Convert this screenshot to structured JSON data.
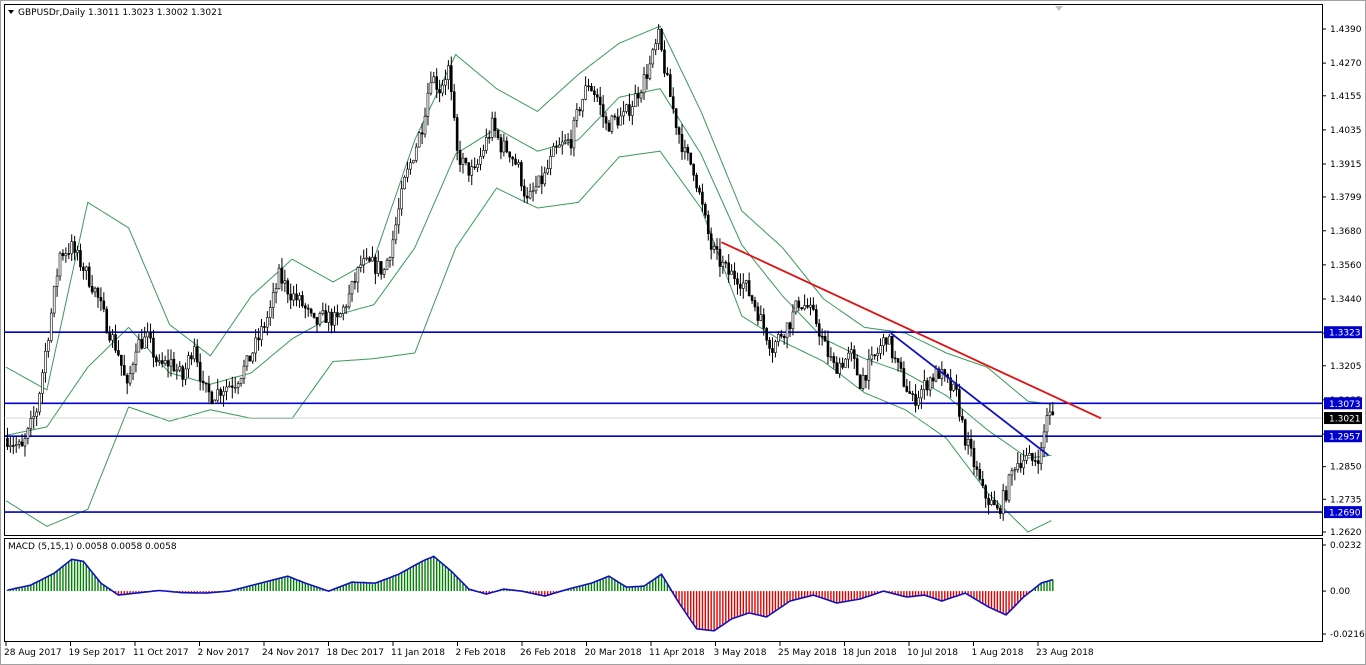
{
  "header": {
    "symbol_text": "GBPUSDr,Daily  1.3011 1.3023 1.3002 1.3021"
  },
  "macd_header": {
    "text": "MACD (5,15,1) 0.0058 0.0058 0.0058"
  },
  "colors": {
    "candle": "#000000",
    "band": "#3a9a5a",
    "hline": "#0000cc",
    "trend_down": "#e01010",
    "trend_blue": "#1010c0",
    "hist_pos": "#008000",
    "hist_neg": "#e00000",
    "macd_line": "#1010c0",
    "price_tag_bg": "#0000cc",
    "current_tag_bg": "#000000"
  },
  "chart_data": [
    {
      "type": "candlestick",
      "title": "GBPUSDr,Daily",
      "y_ticks": [
        "1.4390",
        "1.4270",
        "1.4155",
        "1.4035",
        "1.3915",
        "1.3799",
        "1.3680",
        "1.3560",
        "1.3440",
        "1.3320",
        "1.3205",
        "1.3085",
        "1.2965",
        "1.2850",
        "1.2735",
        "1.2620"
      ],
      "ylim": [
        1.262,
        1.439
      ],
      "x_labels": [
        "28 Aug 2017",
        "19 Sep 2017",
        "11 Oct 2017",
        "2 Nov 2017",
        "24 Nov 2017",
        "18 Dec 2017",
        "11 Jan 2018",
        "2 Feb 2018",
        "26 Feb 2018",
        "20 Mar 2018",
        "11 Apr 2018",
        "3 May 2018",
        "25 May 2018",
        "18 Jun 2018",
        "10 Jul 2018",
        "1 Aug 2018",
        "23 Aug 2018"
      ],
      "horizontal_levels": [
        {
          "value": 1.3323,
          "label": "1.3323"
        },
        {
          "value": 1.3073,
          "label": "1.3073"
        },
        {
          "value": 1.2957,
          "label": "1.2957"
        },
        {
          "value": 1.269,
          "label": "1.2690"
        }
      ],
      "current_price": {
        "value": 1.3021,
        "label": "1.3021"
      },
      "trendlines": [
        {
          "color": "red",
          "from": {
            "bar": 245,
            "price": 1.364
          },
          "to": {
            "bar": 375,
            "price": 1.302
          }
        },
        {
          "color": "blue",
          "from": {
            "bar": 303,
            "price": 1.332
          },
          "to": {
            "bar": 357,
            "price": 1.289
          }
        }
      ],
      "price_anchors": [
        [
          0,
          1.295
        ],
        [
          5,
          1.291
        ],
        [
          10,
          1.305
        ],
        [
          14,
          1.332
        ],
        [
          18,
          1.36
        ],
        [
          22,
          1.362
        ],
        [
          26,
          1.355
        ],
        [
          30,
          1.347
        ],
        [
          34,
          1.335
        ],
        [
          38,
          1.325
        ],
        [
          41,
          1.312
        ],
        [
          44,
          1.328
        ],
        [
          48,
          1.33
        ],
        [
          52,
          1.32
        ],
        [
          56,
          1.322
        ],
        [
          60,
          1.316
        ],
        [
          64,
          1.329
        ],
        [
          67,
          1.312
        ],
        [
          70,
          1.31
        ],
        [
          74,
          1.313
        ],
        [
          78,
          1.315
        ],
        [
          82,
          1.321
        ],
        [
          86,
          1.33
        ],
        [
          90,
          1.34
        ],
        [
          93,
          1.352
        ],
        [
          97,
          1.346
        ],
        [
          101,
          1.342
        ],
        [
          105,
          1.335
        ],
        [
          109,
          1.338
        ],
        [
          113,
          1.336
        ],
        [
          117,
          1.345
        ],
        [
          121,
          1.356
        ],
        [
          125,
          1.356
        ],
        [
          129,
          1.354
        ],
        [
          132,
          1.365
        ],
        [
          136,
          1.385
        ],
        [
          139,
          1.395
        ],
        [
          142,
          1.405
        ],
        [
          145,
          1.423
        ],
        [
          148,
          1.418
        ],
        [
          151,
          1.425
        ],
        [
          154,
          1.395
        ],
        [
          157,
          1.39
        ],
        [
          160,
          1.388
        ],
        [
          163,
          1.397
        ],
        [
          166,
          1.405
        ],
        [
          169,
          1.398
        ],
        [
          172,
          1.396
        ],
        [
          175,
          1.39
        ],
        [
          178,
          1.378
        ],
        [
          181,
          1.383
        ],
        [
          184,
          1.387
        ],
        [
          187,
          1.395
        ],
        [
          190,
          1.398
        ],
        [
          193,
          1.4
        ],
        [
          196,
          1.412
        ],
        [
          199,
          1.42
        ],
        [
          202,
          1.415
        ],
        [
          205,
          1.405
        ],
        [
          208,
          1.407
        ],
        [
          211,
          1.408
        ],
        [
          214,
          1.413
        ],
        [
          217,
          1.419
        ],
        [
          220,
          1.426
        ],
        [
          223,
          1.436
        ],
        [
          226,
          1.42
        ],
        [
          229,
          1.406
        ],
        [
          232,
          1.395
        ],
        [
          235,
          1.39
        ],
        [
          238,
          1.376
        ],
        [
          241,
          1.362
        ],
        [
          244,
          1.357
        ],
        [
          247,
          1.353
        ],
        [
          250,
          1.352
        ],
        [
          253,
          1.348
        ],
        [
          256,
          1.342
        ],
        [
          259,
          1.334
        ],
        [
          262,
          1.327
        ],
        [
          265,
          1.332
        ],
        [
          268,
          1.336
        ],
        [
          271,
          1.343
        ],
        [
          274,
          1.341
        ],
        [
          277,
          1.336
        ],
        [
          280,
          1.327
        ],
        [
          283,
          1.32
        ],
        [
          286,
          1.322
        ],
        [
          289,
          1.324
        ],
        [
          292,
          1.315
        ],
        [
          295,
          1.32
        ],
        [
          298,
          1.325
        ],
        [
          301,
          1.331
        ],
        [
          304,
          1.322
        ],
        [
          307,
          1.315
        ],
        [
          310,
          1.308
        ],
        [
          313,
          1.312
        ],
        [
          316,
          1.316
        ],
        [
          319,
          1.318
        ],
        [
          322,
          1.314
        ],
        [
          325,
          1.31
        ],
        [
          328,
          1.295
        ],
        [
          331,
          1.286
        ],
        [
          334,
          1.276
        ],
        [
          337,
          1.272
        ],
        [
          339,
          1.269
        ],
        [
          342,
          1.276
        ],
        [
          345,
          1.286
        ],
        [
          348,
          1.288
        ],
        [
          351,
          1.287
        ],
        [
          354,
          1.29
        ],
        [
          356,
          1.304
        ],
        [
          358,
          1.3021
        ]
      ],
      "bollinger": {
        "mid": [
          [
            0,
            1.296
          ],
          [
            14,
            1.299
          ],
          [
            28,
            1.32
          ],
          [
            42,
            1.334
          ],
          [
            56,
            1.318
          ],
          [
            70,
            1.314
          ],
          [
            84,
            1.318
          ],
          [
            98,
            1.33
          ],
          [
            112,
            1.338
          ],
          [
            126,
            1.342
          ],
          [
            140,
            1.362
          ],
          [
            154,
            1.395
          ],
          [
            168,
            1.404
          ],
          [
            182,
            1.396
          ],
          [
            196,
            1.4
          ],
          [
            210,
            1.415
          ],
          [
            224,
            1.418
          ],
          [
            238,
            1.395
          ],
          [
            252,
            1.363
          ],
          [
            266,
            1.345
          ],
          [
            280,
            1.33
          ],
          [
            294,
            1.323
          ],
          [
            308,
            1.318
          ],
          [
            322,
            1.31
          ],
          [
            336,
            1.298
          ],
          [
            350,
            1.288
          ],
          [
            358,
            1.289
          ]
        ],
        "upper": [
          [
            0,
            1.32
          ],
          [
            14,
            1.312
          ],
          [
            28,
            1.378
          ],
          [
            42,
            1.369
          ],
          [
            56,
            1.335
          ],
          [
            70,
            1.324
          ],
          [
            84,
            1.345
          ],
          [
            98,
            1.358
          ],
          [
            112,
            1.35
          ],
          [
            126,
            1.358
          ],
          [
            140,
            1.4
          ],
          [
            154,
            1.43
          ],
          [
            168,
            1.418
          ],
          [
            182,
            1.41
          ],
          [
            196,
            1.423
          ],
          [
            210,
            1.434
          ],
          [
            224,
            1.44
          ],
          [
            238,
            1.41
          ],
          [
            252,
            1.375
          ],
          [
            266,
            1.362
          ],
          [
            280,
            1.344
          ],
          [
            294,
            1.334
          ],
          [
            308,
            1.332
          ],
          [
            322,
            1.325
          ],
          [
            336,
            1.32
          ],
          [
            350,
            1.308
          ],
          [
            358,
            1.307
          ]
        ],
        "lower": [
          [
            0,
            1.273
          ],
          [
            14,
            1.264
          ],
          [
            28,
            1.27
          ],
          [
            42,
            1.306
          ],
          [
            56,
            1.301
          ],
          [
            70,
            1.305
          ],
          [
            84,
            1.302
          ],
          [
            98,
            1.302
          ],
          [
            112,
            1.322
          ],
          [
            126,
            1.323
          ],
          [
            140,
            1.325
          ],
          [
            154,
            1.362
          ],
          [
            168,
            1.383
          ],
          [
            182,
            1.376
          ],
          [
            196,
            1.378
          ],
          [
            210,
            1.394
          ],
          [
            224,
            1.396
          ],
          [
            238,
            1.376
          ],
          [
            252,
            1.338
          ],
          [
            266,
            1.329
          ],
          [
            280,
            1.322
          ],
          [
            294,
            1.311
          ],
          [
            308,
            1.305
          ],
          [
            322,
            1.295
          ],
          [
            336,
            1.276
          ],
          [
            350,
            1.262
          ],
          [
            358,
            1.266
          ]
        ]
      },
      "bars_total": 360
    },
    {
      "type": "macd_histogram",
      "title": "MACD (5,15,1)",
      "y_ticks": [
        "0.0232",
        "0.00",
        "-0.0216"
      ],
      "ylim": [
        -0.0216,
        0.0232
      ],
      "macd_anchors": [
        [
          0,
          0.0005
        ],
        [
          8,
          0.003
        ],
        [
          16,
          0.009
        ],
        [
          22,
          0.016
        ],
        [
          26,
          0.015
        ],
        [
          32,
          0.004
        ],
        [
          38,
          -0.002
        ],
        [
          44,
          -0.001
        ],
        [
          52,
          0.0003
        ],
        [
          60,
          -0.0008
        ],
        [
          68,
          -0.001
        ],
        [
          76,
          0.0
        ],
        [
          84,
          0.003
        ],
        [
          92,
          0.006
        ],
        [
          96,
          0.0075
        ],
        [
          102,
          0.004
        ],
        [
          110,
          0.0
        ],
        [
          118,
          0.0045
        ],
        [
          126,
          0.004
        ],
        [
          134,
          0.0085
        ],
        [
          142,
          0.015
        ],
        [
          146,
          0.0175
        ],
        [
          152,
          0.01
        ],
        [
          158,
          0.001
        ],
        [
          164,
          -0.0015
        ],
        [
          170,
          0.001
        ],
        [
          176,
          0.0
        ],
        [
          184,
          -0.0025
        ],
        [
          192,
          0.001
        ],
        [
          200,
          0.004
        ],
        [
          206,
          0.0075
        ],
        [
          212,
          0.002
        ],
        [
          218,
          0.0025
        ],
        [
          224,
          0.0085
        ],
        [
          230,
          -0.006
        ],
        [
          236,
          -0.019
        ],
        [
          242,
          -0.02
        ],
        [
          248,
          -0.014
        ],
        [
          254,
          -0.011
        ],
        [
          260,
          -0.013
        ],
        [
          268,
          -0.005
        ],
        [
          276,
          -0.002
        ],
        [
          284,
          -0.006
        ],
        [
          292,
          -0.004
        ],
        [
          300,
          0.0
        ],
        [
          308,
          -0.003
        ],
        [
          314,
          -0.002
        ],
        [
          320,
          -0.005
        ],
        [
          328,
          -0.001
        ],
        [
          336,
          -0.008
        ],
        [
          342,
          -0.012
        ],
        [
          348,
          -0.003
        ],
        [
          354,
          0.004
        ],
        [
          358,
          0.0058
        ]
      ]
    }
  ]
}
